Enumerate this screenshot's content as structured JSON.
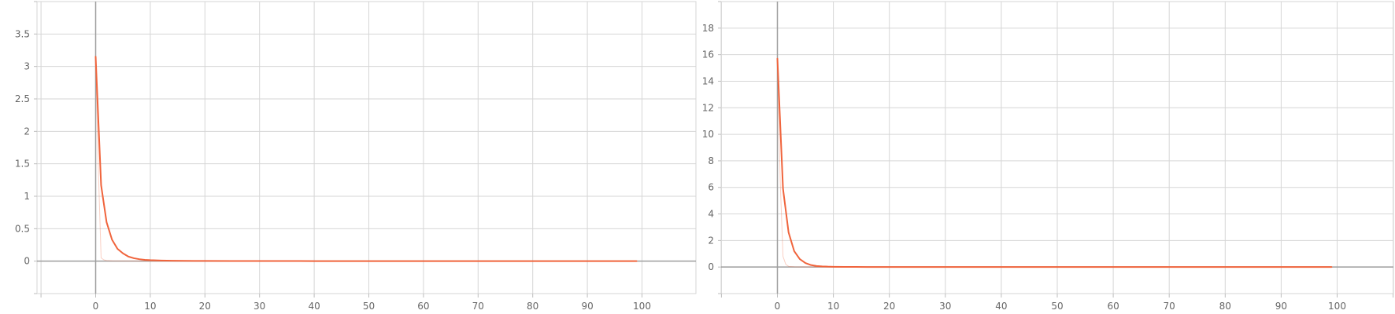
{
  "chart_data": [
    {
      "type": "line",
      "title": "",
      "xlabel": "",
      "ylabel": "",
      "xlim": [
        -10,
        110
      ],
      "ylim": [
        -0.5,
        4
      ],
      "xticks": [
        0,
        10,
        20,
        30,
        40,
        50,
        60,
        70,
        80,
        90,
        100
      ],
      "yticks": [
        0,
        0.5,
        1,
        1.5,
        2,
        2.5,
        3,
        3.5
      ],
      "xtick_labels": [
        "0",
        "10",
        "20",
        "30",
        "40",
        "50",
        "60",
        "70",
        "80",
        "90",
        "100"
      ],
      "ytick_labels": [
        "0",
        "0.5",
        "1",
        "1.5",
        "2",
        "2.5",
        "3",
        "3.5"
      ],
      "grid": true,
      "series": [
        {
          "color": "#f0643c",
          "opacity": 1,
          "x": [
            0,
            1,
            2,
            3,
            4,
            5,
            6,
            7,
            8,
            9,
            10,
            12,
            14,
            16,
            18,
            20,
            25,
            30,
            40,
            50,
            60,
            70,
            80,
            90,
            99
          ],
          "y": [
            3.15,
            1.17,
            0.6,
            0.33,
            0.19,
            0.12,
            0.07,
            0.045,
            0.03,
            0.02,
            0.015,
            0.01,
            0.007,
            0.005,
            0.004,
            0.003,
            0.002,
            0.002,
            0.001,
            0.001,
            0.001,
            0.001,
            0.001,
            0.001,
            0.001
          ]
        },
        {
          "color": "#f0643c",
          "opacity": 0.3,
          "x": [
            0,
            0.5,
            1,
            1.5,
            2,
            3,
            5,
            10,
            20,
            50,
            99
          ],
          "y": [
            3.15,
            1.4,
            0.05,
            0.02,
            0.01,
            0.005,
            0.003,
            0.001,
            0.001,
            0.001,
            0.001
          ]
        }
      ]
    },
    {
      "type": "line",
      "title": "",
      "xlabel": "",
      "ylabel": "",
      "xlim": [
        -10,
        110
      ],
      "ylim": [
        -2,
        20
      ],
      "xticks": [
        0,
        10,
        20,
        30,
        40,
        50,
        60,
        70,
        80,
        90,
        100
      ],
      "yticks": [
        0,
        2,
        4,
        6,
        8,
        10,
        12,
        14,
        16,
        18
      ],
      "xtick_labels": [
        "0",
        "10",
        "20",
        "30",
        "40",
        "50",
        "60",
        "70",
        "80",
        "90",
        "100"
      ],
      "ytick_labels": [
        "0",
        "2",
        "4",
        "6",
        "8",
        "10",
        "12",
        "14",
        "16",
        "18"
      ],
      "grid": true,
      "series": [
        {
          "color": "#f0643c",
          "opacity": 1,
          "x": [
            0,
            1,
            2,
            3,
            4,
            5,
            6,
            7,
            8,
            9,
            10,
            12,
            14,
            16,
            18,
            20,
            25,
            30,
            40,
            50,
            60,
            70,
            80,
            90,
            99
          ],
          "y": [
            15.7,
            5.9,
            2.6,
            1.2,
            0.6,
            0.3,
            0.15,
            0.08,
            0.05,
            0.03,
            0.02,
            0.01,
            0.008,
            0.006,
            0.005,
            0.004,
            0.003,
            0.002,
            0.002,
            0.001,
            0.001,
            0.001,
            0.001,
            0.001,
            0.001
          ]
        },
        {
          "color": "#f0643c",
          "opacity": 0.3,
          "x": [
            0,
            0.5,
            1,
            1.5,
            2,
            3,
            5,
            10,
            20,
            50,
            99
          ],
          "y": [
            15.7,
            6.5,
            0.8,
            0.2,
            0.05,
            0.02,
            0.01,
            0.005,
            0.002,
            0.001,
            0.001
          ]
        }
      ]
    }
  ]
}
